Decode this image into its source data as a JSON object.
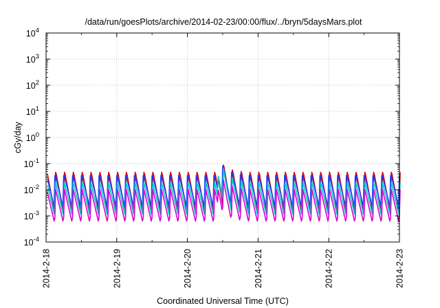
{
  "chart_data": {
    "type": "line",
    "title": "/data/run/goesPlots/archive/2014-02-23/00:00/flux/../bryn/5daysMars.plot",
    "xlabel": "Coordinated Universal Time (UTC)",
    "ylabel": "cGy/day",
    "y_scale": "log",
    "ylim": [
      0.0001,
      10000
    ],
    "xlim": [
      "2014-02-18",
      "2014-02-23"
    ],
    "grid": true,
    "y_ticks": [
      {
        "base": "10",
        "exp": "-4"
      },
      {
        "base": "10",
        "exp": "-3"
      },
      {
        "base": "10",
        "exp": "-2"
      },
      {
        "base": "10",
        "exp": "-1"
      },
      {
        "base": "10",
        "exp": "0"
      },
      {
        "base": "10",
        "exp": "1"
      },
      {
        "base": "10",
        "exp": "2"
      },
      {
        "base": "10",
        "exp": "3"
      },
      {
        "base": "10",
        "exp": "4"
      }
    ],
    "x_ticks": [
      "2014-2-18",
      "2014-2-19",
      "2014-2-20",
      "2014-2-21",
      "2014-2-22",
      "2014-2-23"
    ],
    "cycles_per_day": 8,
    "spike": {
      "x": "2014-02-20 11:00",
      "peak": 0.15
    },
    "series": [
      {
        "color": "#dd0000",
        "peak": 0.055,
        "trough": 0.0012
      },
      {
        "color": "#1a3cff",
        "peak": 0.045,
        "trough": 0.0022
      },
      {
        "color": "#00c8c8",
        "peak": 0.022,
        "trough": 0.001
      },
      {
        "color": "#d400d4",
        "peak": 0.011,
        "trough": 0.0005
      }
    ]
  }
}
